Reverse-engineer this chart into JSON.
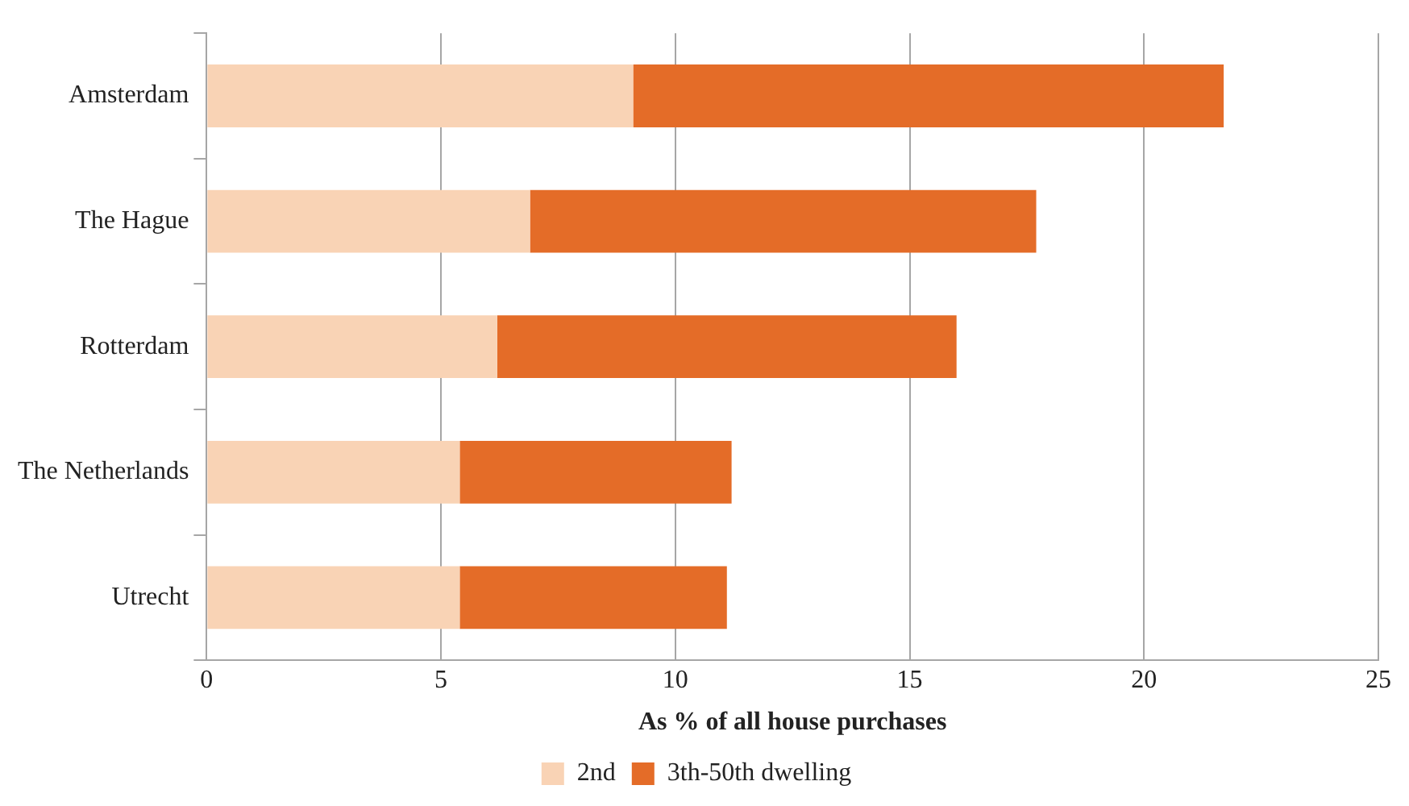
{
  "chart_data": {
    "type": "bar",
    "orientation": "horizontal",
    "stacked": true,
    "categories": [
      "Amsterdam",
      "The Hague",
      "Rotterdam",
      "The Netherlands",
      "Utrecht"
    ],
    "series": [
      {
        "name": "2nd",
        "color": "#f9d3b5",
        "values": [
          9.1,
          6.9,
          6.2,
          5.4,
          5.4
        ]
      },
      {
        "name": "3th-50th dwelling",
        "color": "#e46c28",
        "values": [
          12.6,
          10.8,
          9.8,
          5.8,
          5.7
        ]
      }
    ],
    "xlabel": "As % of all house purchases",
    "xlim": [
      0,
      25
    ],
    "xticks": [
      0,
      5,
      10,
      15,
      20,
      25
    ],
    "grid": "x",
    "legend": "bottom"
  }
}
